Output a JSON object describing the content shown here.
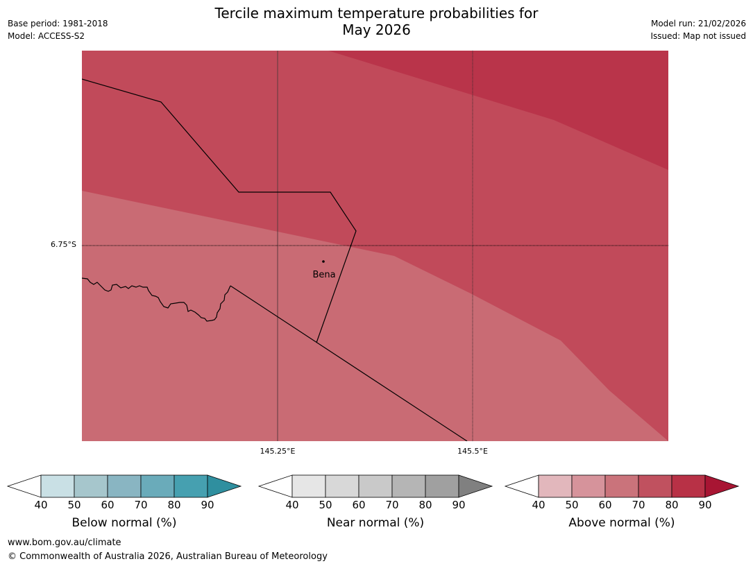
{
  "title": {
    "line1": "Tercile maximum temperature probabilities for",
    "line2": "May 2026"
  },
  "meta": {
    "base_period": "Base period: 1981-2018",
    "model": "Model: ACCESS-S2",
    "model_run": "Model run: 21/02/2026",
    "issued": "Issued: Map not issued"
  },
  "map": {
    "lat_label": "6.75°S",
    "lon_labels": [
      "145.25°E",
      "145.5°E"
    ],
    "place": "Bena",
    "zone_colors": {
      "above_60_70": "#c96b74",
      "above_70_80": "#c14a5a",
      "above_80_90": "#b9344a"
    }
  },
  "legends": [
    {
      "id": "below",
      "title": "Below normal (%)",
      "ticks": [
        "40",
        "50",
        "60",
        "70",
        "80",
        "90"
      ],
      "colors": [
        "#c9e0e5",
        "#a6c6cc",
        "#89b5c2",
        "#6aabba",
        "#46a0b0",
        "#2f8f9f"
      ]
    },
    {
      "id": "near",
      "title": "Near normal (%)",
      "ticks": [
        "40",
        "50",
        "60",
        "70",
        "80",
        "90"
      ],
      "colors": [
        "#e6e6e6",
        "#d8d8d8",
        "#c9c9c9",
        "#b5b5b5",
        "#a0a0a0",
        "#808080"
      ]
    },
    {
      "id": "above",
      "title": "Above normal (%)",
      "ticks": [
        "40",
        "50",
        "60",
        "70",
        "80",
        "90"
      ],
      "colors": [
        "#e2b7bc",
        "#d6939b",
        "#ca737b",
        "#c0515f",
        "#b83146",
        "#a81533"
      ]
    }
  ],
  "footer": {
    "url": "www.bom.gov.au/climate",
    "copyright": "© Commonwealth of Australia 2026, Australian Bureau of Meteorology"
  }
}
